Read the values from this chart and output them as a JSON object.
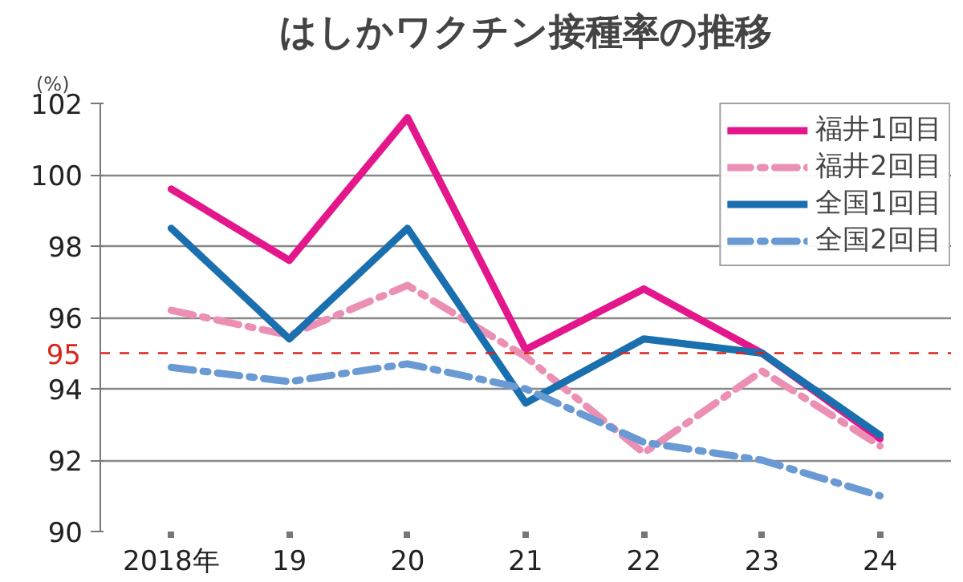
{
  "chart_data": {
    "type": "line",
    "title": "はしかワクチン接種率の推移",
    "ylabel": "(%)",
    "categories": [
      "2018年",
      "19",
      "20",
      "21",
      "22",
      "23",
      "24"
    ],
    "series": [
      {
        "name": "福井1回目",
        "color": "#e4168c",
        "line_style": "solid",
        "values": [
          99.6,
          97.6,
          101.6,
          95.1,
          96.8,
          95.0,
          92.6
        ]
      },
      {
        "name": "福井2回目",
        "color": "#ec8fb4",
        "line_style": "dashdot",
        "values": [
          96.2,
          95.5,
          96.9,
          94.9,
          92.2,
          94.5,
          92.4
        ]
      },
      {
        "name": "全国1回目",
        "color": "#1a6fae",
        "line_style": "solid",
        "values": [
          98.5,
          95.4,
          98.5,
          93.6,
          95.4,
          95.0,
          92.7
        ]
      },
      {
        "name": "全国2回目",
        "color": "#6a9ad3",
        "line_style": "dashdot",
        "values": [
          94.6,
          94.2,
          94.7,
          94.0,
          92.5,
          92.0,
          91.0
        ]
      }
    ],
    "ylim": [
      90,
      102
    ],
    "yticks": [
      90,
      92,
      94,
      96,
      98,
      100,
      102
    ],
    "grid": "y",
    "legend": "top right",
    "marker": "none",
    "ref_lines": [
      {
        "axis": "y",
        "value": 95,
        "label": "95",
        "color": "#d7261e",
        "line_style": "dashed"
      }
    ]
  }
}
